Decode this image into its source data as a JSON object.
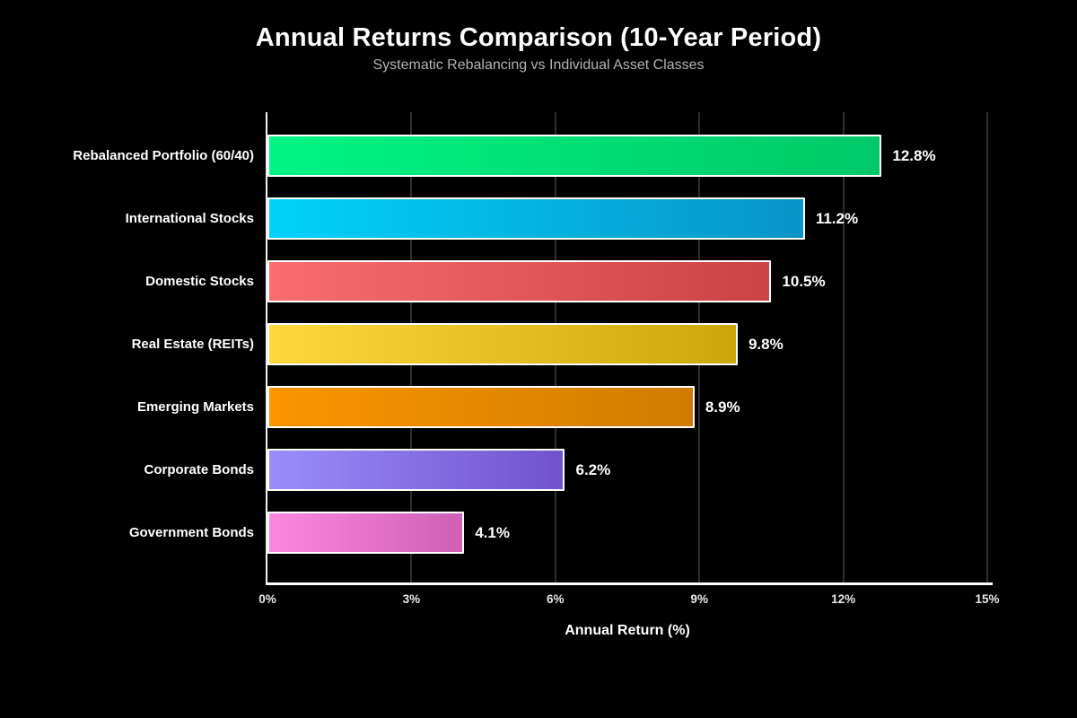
{
  "chart_data": {
    "type": "bar",
    "orientation": "horizontal",
    "title": "Annual Returns Comparison (10-Year Period)",
    "subtitle": "Systematic Rebalancing vs Individual Asset Classes",
    "xlabel": "Annual Return (%)",
    "xlim": [
      0,
      15
    ],
    "x_ticks": [
      {
        "value": 0,
        "label": "0%"
      },
      {
        "value": 3,
        "label": "3%"
      },
      {
        "value": 6,
        "label": "6%"
      },
      {
        "value": 9,
        "label": "9%"
      },
      {
        "value": 12,
        "label": "12%"
      },
      {
        "value": 15,
        "label": "15%"
      }
    ],
    "grid": "vertical gridlines at each tick, dark gray on black",
    "legend": "none",
    "categories": [
      "Rebalanced Portfolio (60/40)",
      "International Stocks",
      "Domestic Stocks",
      "Real Estate (REITs)",
      "Emerging Markets",
      "Corporate Bonds",
      "Government Bonds"
    ],
    "values": [
      12.8,
      11.2,
      10.5,
      9.8,
      8.9,
      6.2,
      4.1
    ],
    "value_labels": [
      "12.8%",
      "11.2%",
      "10.5%",
      "9.8%",
      "8.9%",
      "6.2%",
      "4.1%"
    ],
    "bar_gradients": [
      [
        "#00f584",
        "#00c868"
      ],
      [
        "#00d2fa",
        "#0894c8"
      ],
      [
        "#fa6c6e",
        "#cb4343"
      ],
      [
        "#fcd83d",
        "#cda60b"
      ],
      [
        "#fb9500",
        "#d07c00"
      ],
      [
        "#9a8dfa",
        "#7152cf"
      ],
      [
        "#fb87de",
        "#cf60b5"
      ]
    ]
  },
  "colors": {
    "background": "#000000",
    "title_text": "#ffffff",
    "subtitle_text": "#b3b3b3",
    "category_label_text": "#ffffff",
    "value_label_text": "#ffffff",
    "tick_label_text": "#e8e8e8",
    "axis_line": "#ffffff",
    "gridline": "#2e2e2e",
    "bar_border": "#ffffff"
  }
}
